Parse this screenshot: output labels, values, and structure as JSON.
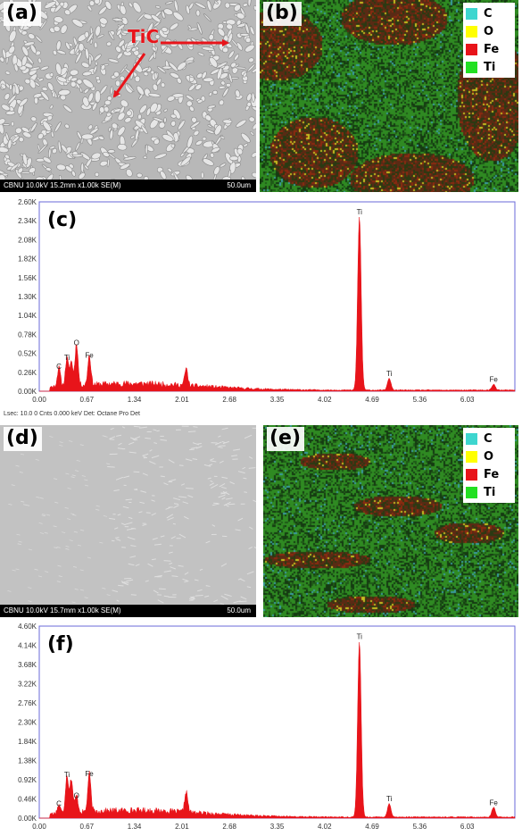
{
  "panels": {
    "a": {
      "label": "(a)",
      "annotation": "TiC",
      "sem_info": "CBNU 10.0kV 15.2mm x1.00k SE(M)",
      "scale": "50.0um"
    },
    "b": {
      "label": "(b)"
    },
    "c": {
      "label": "(c)"
    },
    "d": {
      "label": "(d)",
      "sem_info": "CBNU 10.0kV 15.7mm x1.00k SE(M)",
      "scale": "50.0um"
    },
    "e": {
      "label": "(e)"
    },
    "f": {
      "label": "(f)"
    }
  },
  "legend": {
    "items": [
      {
        "name": "C",
        "color": "#3ed6cf"
      },
      {
        "name": "O",
        "color": "#ffff00"
      },
      {
        "name": "Fe",
        "color": "#e8141a"
      },
      {
        "name": "Ti",
        "color": "#22e022"
      }
    ]
  },
  "detector_info": "Lsec: 10.0 0 Cnts  0.000 keV Det: Octane Pro Det",
  "chart_data": [
    {
      "panel": "c",
      "type": "area",
      "x_ticks": [
        "0.00",
        "0.67",
        "1.34",
        "2.01",
        "2.68",
        "3.35",
        "4.02",
        "4.69",
        "5.36",
        "6.03"
      ],
      "y_ticks": [
        "0.00K",
        "0.26K",
        "0.52K",
        "0.78K",
        "1.04K",
        "1.30K",
        "1.56K",
        "1.82K",
        "2.08K",
        "2.34K",
        "2.60K"
      ],
      "xlim": [
        0,
        6.7
      ],
      "ylim": [
        0,
        2.6
      ],
      "color": "#e8141a",
      "peaks": [
        {
          "x": 0.277,
          "y": 0.26,
          "label": "C"
        },
        {
          "x": 0.39,
          "y": 0.38,
          "label": "Ti"
        },
        {
          "x": 0.452,
          "y": 0.33,
          "label": ""
        },
        {
          "x": 0.525,
          "y": 0.58,
          "label": "O"
        },
        {
          "x": 0.705,
          "y": 0.41,
          "label": "Fe"
        },
        {
          "x": 2.07,
          "y": 0.23,
          "label": ""
        },
        {
          "x": 4.51,
          "y": 2.38,
          "label": "Ti"
        },
        {
          "x": 4.93,
          "y": 0.16,
          "label": "Ti"
        },
        {
          "x": 6.4,
          "y": 0.08,
          "label": "Fe"
        }
      ]
    },
    {
      "panel": "f",
      "type": "area",
      "x_ticks": [
        "0.00",
        "0.67",
        "1.34",
        "2.01",
        "2.68",
        "3.35",
        "4.02",
        "4.69",
        "5.36",
        "6.03"
      ],
      "y_ticks": [
        "0.00K",
        "0.46K",
        "0.92K",
        "1.38K",
        "1.84K",
        "2.30K",
        "2.76K",
        "3.22K",
        "3.68K",
        "4.14K",
        "4.60K"
      ],
      "xlim": [
        0,
        6.7
      ],
      "ylim": [
        0,
        4.6
      ],
      "color": "#e8141a",
      "peaks": [
        {
          "x": 0.277,
          "y": 0.2,
          "label": "C"
        },
        {
          "x": 0.39,
          "y": 0.9,
          "label": "Ti"
        },
        {
          "x": 0.452,
          "y": 0.8,
          "label": ""
        },
        {
          "x": 0.525,
          "y": 0.4,
          "label": "O"
        },
        {
          "x": 0.705,
          "y": 0.92,
          "label": "Fe"
        },
        {
          "x": 2.07,
          "y": 0.5,
          "label": ""
        },
        {
          "x": 4.51,
          "y": 4.2,
          "label": "Ti"
        },
        {
          "x": 4.93,
          "y": 0.32,
          "label": "Ti"
        },
        {
          "x": 6.4,
          "y": 0.23,
          "label": "Fe"
        }
      ]
    }
  ]
}
